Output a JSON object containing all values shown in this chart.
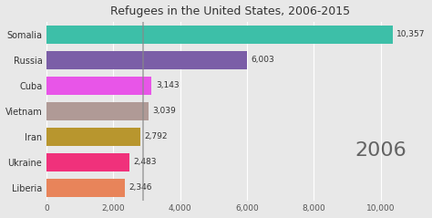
{
  "title": "Refugees in the United States, 2006-2015",
  "year_label": "2006",
  "categories": [
    "Somalia",
    "Russia",
    "Cuba",
    "Vietnam",
    "Iran",
    "Ukraine",
    "Liberia"
  ],
  "values": [
    10357,
    6003,
    3143,
    3039,
    2792,
    2483,
    2346
  ],
  "bar_colors": [
    "#3dbfa8",
    "#7b5ea7",
    "#e855e8",
    "#b09a96",
    "#b8962e",
    "#f0317b",
    "#e8845a"
  ],
  "background_color": "#e8e8e8",
  "xlim": [
    0,
    11000
  ],
  "xticks": [
    0,
    2000,
    4000,
    6000,
    8000,
    10000
  ],
  "xticklabels": [
    "0",
    "2,000",
    "4,000",
    "6,000",
    "8,000",
    "10,000"
  ],
  "vline_x": 2900,
  "vline_color": "#888888"
}
